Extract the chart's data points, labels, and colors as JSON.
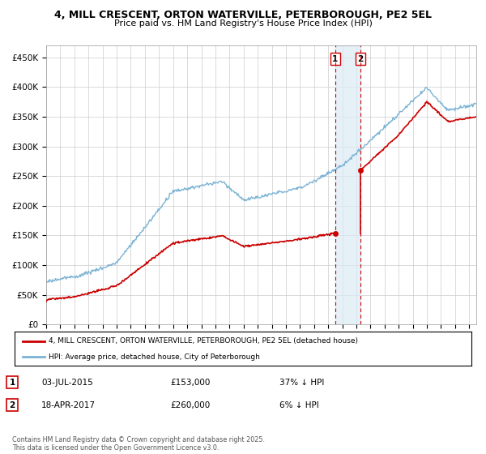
{
  "title": "4, MILL CRESCENT, ORTON WATERVILLE, PETERBOROUGH, PE2 5EL",
  "subtitle": "Price paid vs. HM Land Registry's House Price Index (HPI)",
  "ylabel_ticks": [
    "£0",
    "£50K",
    "£100K",
    "£150K",
    "£200K",
    "£250K",
    "£300K",
    "£350K",
    "£400K",
    "£450K"
  ],
  "ytick_vals": [
    0,
    50000,
    100000,
    150000,
    200000,
    250000,
    300000,
    350000,
    400000,
    450000
  ],
  "ylim": [
    0,
    470000
  ],
  "xlim_start": 1995.0,
  "xlim_end": 2025.5,
  "purchase1_year": 2015.5,
  "purchase1_price": 153000,
  "purchase2_year": 2017.29,
  "purchase2_price": 260000,
  "hpi_color": "#7ab3d4",
  "price_color": "#cc0000",
  "vline_color": "#cc0000",
  "shade_color": "#daeaf5",
  "legend_entry1": "4, MILL CRESCENT, ORTON WATERVILLE, PETERBOROUGH, PE2 5EL (detached house)",
  "legend_entry2": "HPI: Average price, detached house, City of Peterborough",
  "table_row1": [
    "1",
    "03-JUL-2015",
    "£153,000",
    "37% ↓ HPI"
  ],
  "table_row2": [
    "2",
    "18-APR-2017",
    "£260,000",
    "6% ↓ HPI"
  ],
  "footer": "Contains HM Land Registry data © Crown copyright and database right 2025.\nThis data is licensed under the Open Government Licence v3.0.",
  "background_color": "#ffffff",
  "grid_color": "#cccccc"
}
